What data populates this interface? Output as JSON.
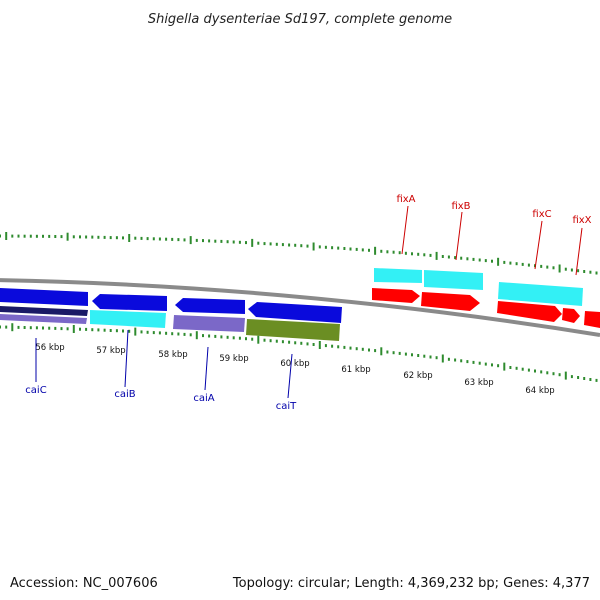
{
  "title": "Shigella dysenteriae Sd197, complete genome",
  "footer": {
    "accession": "Accession: NC_007606",
    "summary": "Topology: circular; Length: 4,369,232 bp; Genes: 4,377"
  },
  "colors": {
    "backbone": "#8a8a8a",
    "tick": "#2e8b2e",
    "forward_label": "#cc0000",
    "reverse_label": "#0000aa",
    "blue": "#0a0adc",
    "cyan": "#33f0f5",
    "red": "#ff0000",
    "violet": "#7b68c8",
    "navy": "#1a1a66",
    "olive": "#6b8e23"
  },
  "kbp_labels": [
    "56 kbp",
    "57 kbp",
    "58 kbp",
    "59 kbp",
    "60 kbp",
    "61 kbp",
    "62 kbp",
    "63 kbp",
    "64 kbp"
  ],
  "gene_labels": [
    {
      "name": "caiC",
      "strand": "reverse"
    },
    {
      "name": "caiB",
      "strand": "reverse"
    },
    {
      "name": "caiA",
      "strand": "reverse"
    },
    {
      "name": "caiT",
      "strand": "reverse"
    },
    {
      "name": "fixA",
      "strand": "forward"
    },
    {
      "name": "fixB",
      "strand": "forward"
    },
    {
      "name": "fixC",
      "strand": "forward"
    },
    {
      "name": "fixX",
      "strand": "forward"
    }
  ]
}
